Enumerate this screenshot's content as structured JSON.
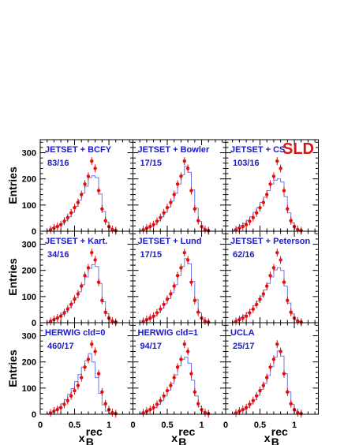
{
  "colors": {
    "frame": "#000000",
    "hist": "#6a78e8",
    "data": "#e01010",
    "label": "#1a1acc",
    "logo": "#e01010"
  },
  "logo": "SLD",
  "chart_data": {
    "type": "histogram-grid",
    "xlim": [
      0,
      1.35
    ],
    "ylim": [
      0,
      350
    ],
    "xticks": [
      "0",
      "0.5",
      "1"
    ],
    "yticks": [
      "0",
      "100",
      "200",
      "300"
    ],
    "ylabel": "Entries",
    "xlabel_main": "x",
    "xlabel_sub": "B",
    "xlabel_sup": "rec",
    "bin_edges": [
      0.0,
      0.05,
      0.1,
      0.15,
      0.2,
      0.25,
      0.3,
      0.35,
      0.4,
      0.45,
      0.5,
      0.55,
      0.6,
      0.65,
      0.7,
      0.75,
      0.8,
      0.85,
      0.9,
      0.95,
      1.0,
      1.05,
      1.1,
      1.15,
      1.2,
      1.25,
      1.3,
      1.35
    ],
    "data": {
      "x": [
        0.15,
        0.2,
        0.25,
        0.3,
        0.35,
        0.4,
        0.45,
        0.5,
        0.55,
        0.6,
        0.65,
        0.7,
        0.75,
        0.8,
        0.85,
        0.9,
        0.95,
        1.0,
        1.05,
        1.1
      ],
      "y": [
        5,
        12,
        18,
        25,
        38,
        52,
        70,
        90,
        110,
        140,
        180,
        210,
        268,
        240,
        155,
        85,
        40,
        18,
        6,
        2
      ]
    },
    "panels": [
      {
        "model": "JETSET + BCFY",
        "chi2": "83/16",
        "hist": [
          0,
          0,
          2,
          12,
          18,
          22,
          30,
          42,
          55,
          72,
          95,
          118,
          145,
          172,
          205,
          212,
          205,
          142,
          75,
          35,
          12,
          4,
          0,
          0,
          0,
          0,
          0
        ]
      },
      {
        "model": "JETSET + Bowler",
        "chi2": "17/15",
        "hist": [
          0,
          0,
          2,
          6,
          12,
          18,
          28,
          40,
          55,
          72,
          92,
          115,
          145,
          180,
          215,
          248,
          225,
          158,
          88,
          38,
          12,
          4,
          0,
          0,
          0,
          0,
          0
        ]
      },
      {
        "model": "JETSET + CS",
        "chi2": "103/16",
        "hist": [
          0,
          0,
          3,
          14,
          22,
          30,
          42,
          55,
          72,
          90,
          110,
          130,
          155,
          180,
          195,
          200,
          188,
          132,
          70,
          32,
          10,
          3,
          0,
          0,
          0,
          0,
          0
        ]
      },
      {
        "model": "JETSET + Kart.",
        "chi2": "34/16",
        "hist": [
          0,
          0,
          2,
          10,
          16,
          22,
          32,
          44,
          58,
          75,
          96,
          118,
          145,
          175,
          208,
          222,
          215,
          150,
          80,
          35,
          12,
          4,
          0,
          0,
          0,
          0,
          0
        ]
      },
      {
        "model": "JETSET + Lund",
        "chi2": "17/15",
        "hist": [
          0,
          0,
          2,
          6,
          12,
          18,
          28,
          40,
          55,
          72,
          92,
          115,
          145,
          180,
          215,
          245,
          225,
          158,
          88,
          38,
          12,
          4,
          0,
          0,
          0,
          0,
          0
        ]
      },
      {
        "model": "JETSET + Peterson",
        "chi2": "62/16",
        "hist": [
          0,
          0,
          3,
          12,
          20,
          28,
          38,
          50,
          65,
          82,
          102,
          125,
          150,
          175,
          202,
          210,
          200,
          140,
          75,
          34,
          11,
          4,
          0,
          0,
          0,
          0,
          0
        ]
      },
      {
        "model": "HERWIG cld=0",
        "chi2": "460/17",
        "hist": [
          0,
          0,
          2,
          8,
          16,
          26,
          40,
          56,
          76,
          98,
          125,
          152,
          180,
          205,
          232,
          200,
          140,
          80,
          36,
          12,
          4,
          0,
          0,
          0,
          0,
          0,
          0
        ]
      },
      {
        "model": "HERWIG cld=1",
        "chi2": "94/17",
        "hist": [
          0,
          0,
          2,
          6,
          12,
          18,
          26,
          38,
          52,
          70,
          92,
          118,
          150,
          185,
          210,
          218,
          195,
          130,
          70,
          30,
          10,
          3,
          0,
          0,
          0,
          0,
          0
        ]
      },
      {
        "model": "UCLA",
        "chi2": "25/17",
        "hist": [
          0,
          0,
          2,
          6,
          12,
          18,
          28,
          40,
          55,
          72,
          95,
          118,
          148,
          182,
          218,
          242,
          222,
          155,
          85,
          38,
          12,
          4,
          0,
          0,
          0,
          0,
          0
        ]
      }
    ]
  }
}
